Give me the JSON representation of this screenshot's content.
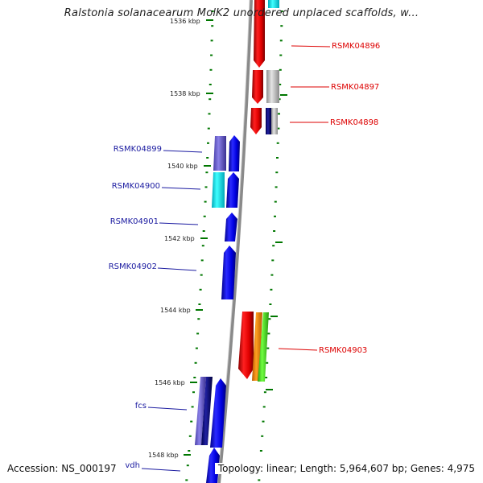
{
  "title": "Ralstonia solanacearum MolK2 unordered unplaced scaffolds, w...",
  "footer": {
    "accession": "Accession: NS_000197",
    "topology": "Topology: linear; Length: 5,964,607 bp; Genes: 4,975"
  },
  "scale_labels": [
    "1536 kbp",
    "1538 kbp",
    "1540 kbp",
    "1542 kbp",
    "1544 kbp",
    "1546 kbp",
    "1548 kbp"
  ],
  "genes": [
    {
      "name": "RSMK04896",
      "strand": "reverse",
      "color": "#dd0000"
    },
    {
      "name": "RSMK04897",
      "strand": "reverse",
      "color": "#dd0000"
    },
    {
      "name": "RSMK04898",
      "strand": "reverse",
      "color": "#dd0000"
    },
    {
      "name": "RSMK04899",
      "strand": "forward",
      "color": "#1a1aa0"
    },
    {
      "name": "RSMK04900",
      "strand": "forward",
      "color": "#1a1aa0"
    },
    {
      "name": "RSMK04901",
      "strand": "forward",
      "color": "#1a1aa0"
    },
    {
      "name": "RSMK04902",
      "strand": "forward",
      "color": "#1a1aa0"
    },
    {
      "name": "RSMK04903",
      "strand": "reverse",
      "color": "#dd0000"
    },
    {
      "name": "fcs",
      "strand": "forward",
      "color": "#1a1aa0"
    },
    {
      "name": "vdh",
      "strand": "forward",
      "color": "#1a1aa0"
    }
  ],
  "colors": {
    "forward_gene": "#0000ee",
    "reverse_gene": "#ee0000",
    "scale_ticks": "#007700",
    "backbone": "#8a8a8a"
  }
}
